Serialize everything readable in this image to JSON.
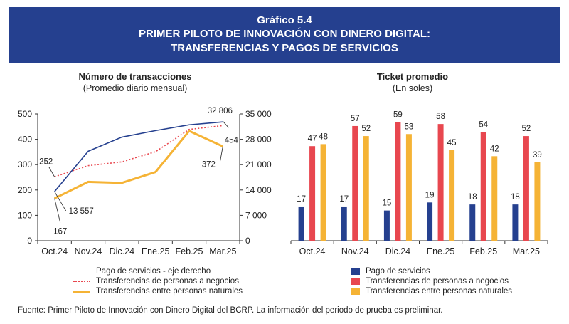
{
  "header": {
    "figure_label": "Gráfico 5.4",
    "title_line1": "PRIMER PILOTO DE INNOVACIÓN CON DINERO DIGITAL:",
    "title_line2": "TRANSFERENCIAS Y PAGOS DE SERVICIOS"
  },
  "source": "Fuente: Primer Piloto de Innovación con Dinero Digital del BCRP. La información del periodo de prueba es preliminar.",
  "chart_data": [
    {
      "type": "line",
      "title": "Número de transacciones",
      "subtitle": "(Promedio diario mensual)",
      "categories": [
        "Oct.24",
        "Nov.24",
        "Dic.24",
        "Ene.25",
        "Feb.25",
        "Mar.25"
      ],
      "ylim": [
        0,
        500
      ],
      "yticks": [
        "0",
        "100",
        "200",
        "300",
        "400",
        "500"
      ],
      "ylim_right": [
        0,
        35000
      ],
      "yticks_right": [
        "0",
        "7 000",
        "14 000",
        "21 000",
        "28 000",
        "35 000"
      ],
      "series": [
        {
          "name": "Pago de servicios - eje derecho",
          "axis": "right",
          "color": "#25408f",
          "style": "solid",
          "values": [
            13557,
            24700,
            28600,
            30400,
            32000,
            32806
          ]
        },
        {
          "name": "Transferencias de personas a negocios",
          "axis": "left",
          "color": "#e8474f",
          "style": "dotted",
          "values": [
            252,
            296,
            311,
            351,
            439,
            454
          ]
        },
        {
          "name": "Transferencias entre personas naturales",
          "axis": "left",
          "color": "#f5b335",
          "style": "solid",
          "values": [
            167,
            232,
            228,
            271,
            433,
            372
          ]
        }
      ],
      "annotations": [
        "252",
        "32 806",
        "454",
        "372",
        "13 557",
        "167"
      ],
      "grid": false,
      "legend": "bottom"
    },
    {
      "type": "bar",
      "title": "Ticket promedio",
      "subtitle": "(En soles)",
      "categories": [
        "Oct.24",
        "Nov.24",
        "Dic.24",
        "Ene.25",
        "Feb.25",
        "Mar.25"
      ],
      "ylim": [
        0,
        63
      ],
      "series": [
        {
          "name": "Pago de servicios",
          "color": "#25408f",
          "values": [
            17,
            17,
            15,
            19,
            18,
            18
          ]
        },
        {
          "name": "Transferencias de personas a negocios",
          "color": "#e8474f",
          "values": [
            47,
            57,
            59,
            58,
            54,
            52
          ]
        },
        {
          "name": "Transferencias entre personas naturales",
          "color": "#f5b335",
          "values": [
            48,
            52,
            53,
            45,
            42,
            39
          ]
        }
      ],
      "grid": false,
      "legend": "bottom"
    }
  ]
}
